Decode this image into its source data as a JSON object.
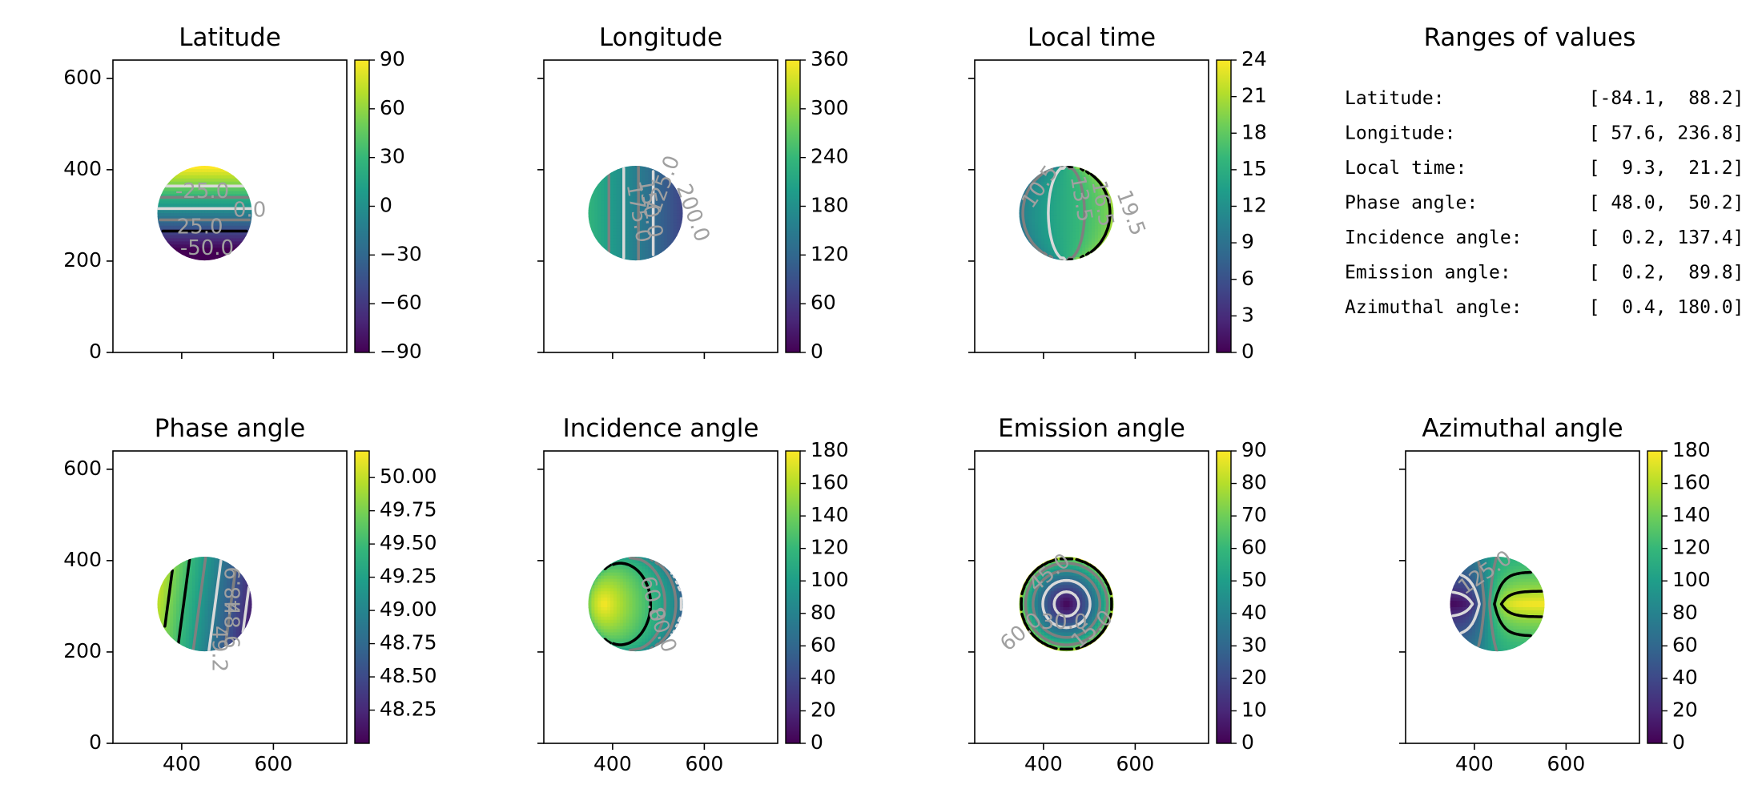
{
  "chart_data": [
    {
      "type": "heatmap",
      "title": "Latitude",
      "quantity": "latitude",
      "xlim": [
        250,
        760
      ],
      "ylim": [
        0,
        640
      ],
      "x_ticks": [],
      "y_ticks": [
        0,
        200,
        400,
        600
      ],
      "colorbar": {
        "min": -90,
        "max": 90,
        "ticks": [
          90,
          60,
          30,
          0,
          -30,
          -60,
          -90
        ],
        "tick_labels": [
          "90",
          "60",
          "30",
          "0",
          "−30",
          "−60",
          "−90"
        ]
      },
      "contour_labels": [
        "-25.0",
        "0.0",
        "25.0",
        "-50.0"
      ]
    },
    {
      "type": "heatmap",
      "title": "Longitude",
      "quantity": "longitude",
      "xlim": [
        250,
        760
      ],
      "ylim": [
        0,
        640
      ],
      "x_ticks": [],
      "y_ticks": [],
      "colorbar": {
        "min": 0,
        "max": 360,
        "ticks": [
          360,
          300,
          240,
          180,
          120,
          60,
          0
        ],
        "tick_labels": [
          "360",
          "300",
          "240",
          "180",
          "120",
          "60",
          "0"
        ]
      },
      "contour_labels": [
        "125.0",
        "150.0",
        "175.0",
        "200.0"
      ]
    },
    {
      "type": "heatmap",
      "title": "Local time",
      "quantity": "local_time",
      "xlim": [
        250,
        760
      ],
      "ylim": [
        0,
        640
      ],
      "x_ticks": [],
      "y_ticks": [],
      "colorbar": {
        "min": 0,
        "max": 24,
        "ticks": [
          24,
          21,
          18,
          15,
          12,
          9,
          6,
          3,
          0
        ],
        "tick_labels": [
          "24",
          "21",
          "18",
          "15",
          "12",
          "9",
          "6",
          "3",
          "0"
        ]
      },
      "contour_labels": [
        "10.5",
        "13.5",
        "16.5",
        "19.5"
      ]
    },
    {
      "type": "table",
      "title": "Ranges of values",
      "rows": [
        "Latitude:             [-84.1,  88.2]",
        "Longitude:            [ 57.6, 236.8]",
        "Local time:           [  9.3,  21.2]",
        "Phase angle:          [ 48.0,  50.2]",
        "Incidence angle:      [  0.2, 137.4]",
        "Emission angle:       [  0.2,  89.8]",
        "Azimuthal angle:      [  0.4, 180.0]"
      ]
    },
    {
      "type": "heatmap",
      "title": "Phase angle",
      "quantity": "phase",
      "xlim": [
        250,
        760
      ],
      "ylim": [
        0,
        640
      ],
      "x_ticks": [
        400,
        600
      ],
      "y_ticks": [
        0,
        200,
        400,
        600
      ],
      "colorbar": {
        "min": 48.0,
        "max": 50.2,
        "ticks": [
          50.0,
          49.75,
          49.5,
          49.25,
          49.0,
          48.75,
          48.5,
          48.25
        ],
        "tick_labels": [
          "50.00",
          "49.75",
          "49.50",
          "49.25",
          "49.00",
          "48.75",
          "48.50",
          "48.25"
        ]
      },
      "contour_labels": [
        "48.9",
        "48.6",
        "49.2"
      ]
    },
    {
      "type": "heatmap",
      "title": "Incidence angle",
      "quantity": "incidence",
      "xlim": [
        250,
        760
      ],
      "ylim": [
        0,
        640
      ],
      "x_ticks": [
        400,
        600
      ],
      "y_ticks": [],
      "colorbar": {
        "min": 0,
        "max": 180,
        "ticks": [
          180,
          160,
          140,
          120,
          100,
          80,
          60,
          40,
          20,
          0
        ],
        "tick_labels": [
          "180",
          "160",
          "140",
          "120",
          "100",
          "80",
          "60",
          "40",
          "20",
          "0"
        ]
      },
      "contour_labels": [
        "60.0",
        "80.0"
      ]
    },
    {
      "type": "heatmap",
      "title": "Emission angle",
      "quantity": "emission",
      "xlim": [
        250,
        760
      ],
      "ylim": [
        0,
        640
      ],
      "x_ticks": [
        400,
        600
      ],
      "y_ticks": [],
      "colorbar": {
        "min": 0,
        "max": 90,
        "ticks": [
          90,
          80,
          70,
          60,
          50,
          40,
          30,
          20,
          10,
          0
        ],
        "tick_labels": [
          "90",
          "80",
          "70",
          "60",
          "50",
          "40",
          "30",
          "20",
          "10",
          "0"
        ]
      },
      "contour_labels": [
        "45.0",
        "30.0",
        "15.0",
        "60.0"
      ]
    },
    {
      "type": "heatmap",
      "title": "Azimuthal angle",
      "quantity": "azimuth",
      "xlim": [
        250,
        760
      ],
      "ylim": [
        0,
        640
      ],
      "x_ticks": [
        400,
        600
      ],
      "y_ticks": [],
      "colorbar": {
        "min": 0,
        "max": 180,
        "ticks": [
          180,
          160,
          140,
          120,
          100,
          80,
          60,
          40,
          20,
          0
        ],
        "tick_labels": [
          "180",
          "160",
          "140",
          "120",
          "100",
          "80",
          "60",
          "40",
          "20",
          "0"
        ]
      },
      "contour_labels": [
        "125.0"
      ]
    }
  ],
  "disc": {
    "center_x": 450,
    "center_y": 305,
    "radius": 90
  },
  "colors": {
    "viridis": [
      "#440154",
      "#482878",
      "#3e4989",
      "#31688e",
      "#26828e",
      "#1f9e89",
      "#35b779",
      "#6ece58",
      "#b5de2b",
      "#fde725"
    ],
    "contour_light": "#d9d9d9",
    "contour_mid": "#7f7f7f",
    "contour_dark": "#000000",
    "contour_label": "#a0a0a0"
  }
}
